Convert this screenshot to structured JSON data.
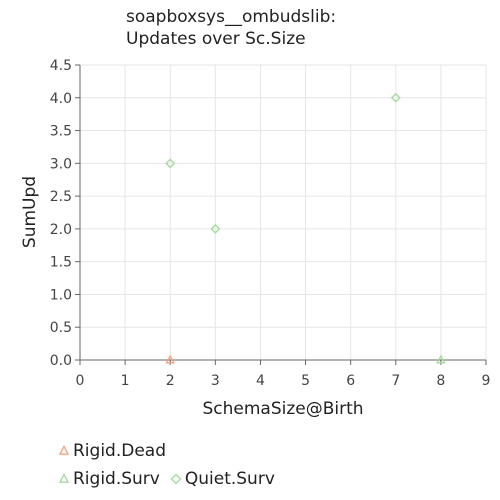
{
  "chart_data": {
    "type": "scatter",
    "title": [
      "soapboxsys__ombudslib:",
      "Updates over Sc.Size"
    ],
    "xlabel": "SchemaSize@Birth",
    "ylabel": "SumUpd",
    "xlim": [
      0,
      9
    ],
    "ylim": [
      0,
      4.5
    ],
    "x_ticks": [
      "0",
      "1",
      "2",
      "3",
      "4",
      "5",
      "6",
      "7",
      "8",
      "9"
    ],
    "y_ticks": [
      "0.0",
      "0.5",
      "1.0",
      "1.5",
      "2.0",
      "2.5",
      "3.0",
      "3.5",
      "4.0",
      "4.5"
    ],
    "grid": true,
    "legend_position": "bottom",
    "series": [
      {
        "name": "Rigid.Dead",
        "marker": "triangle",
        "color": "#f4a582",
        "points": [
          {
            "x": 2,
            "y": 0
          }
        ]
      },
      {
        "name": "Rigid.Surv",
        "marker": "triangle",
        "color": "#a6dba0",
        "points": [
          {
            "x": 8,
            "y": 0
          }
        ]
      },
      {
        "name": "Quiet.Surv",
        "marker": "diamond",
        "color": "#a6dba0",
        "points": [
          {
            "x": 2,
            "y": 3
          },
          {
            "x": 3,
            "y": 2
          },
          {
            "x": 7,
            "y": 4
          }
        ]
      }
    ]
  }
}
